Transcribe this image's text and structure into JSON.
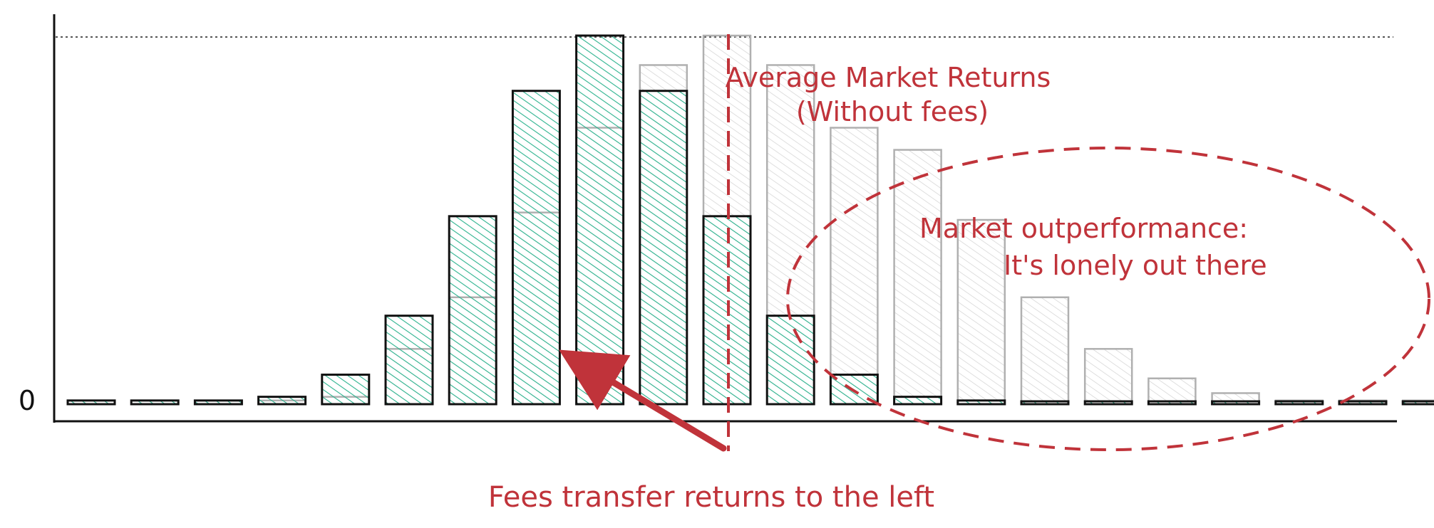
{
  "chart_data": {
    "type": "bar",
    "y_tick_labels": [
      "0"
    ],
    "ylim": [
      0,
      1.0
    ],
    "grid": false,
    "series": [
      {
        "role": "with-fees (shifted left)",
        "color": "#2db38f",
        "values": [
          0.01,
          0.01,
          0.01,
          0.02,
          0.08,
          0.24,
          0.51,
          0.85,
          1.0,
          0.85,
          0.51,
          0.24,
          0.08,
          0.02,
          0.01,
          0.0,
          0.0,
          0.0,
          0.0,
          0.0,
          0.0,
          0.0
        ]
      },
      {
        "role": "without fees",
        "color": "#b8b8b8",
        "values": [
          0.01,
          0.01,
          0.01,
          0.01,
          0.02,
          0.15,
          0.29,
          0.52,
          0.75,
          0.92,
          1.0,
          0.92,
          0.75,
          0.69,
          0.5,
          0.29,
          0.15,
          0.07,
          0.03,
          0.01,
          0.01,
          0.01
        ]
      }
    ],
    "annotations": {
      "average_line": "Average Market Returns\n(Without fees)",
      "average_line_bar_index": 10.5,
      "outperformance": "Market outperformance:\nIt's lonely out there",
      "fees": "Fees transfer returns to the left"
    },
    "colors": {
      "annotation": "#c0333a",
      "green": "#2db38f",
      "grey": "#b8b8b8",
      "axis": "#111111"
    }
  }
}
